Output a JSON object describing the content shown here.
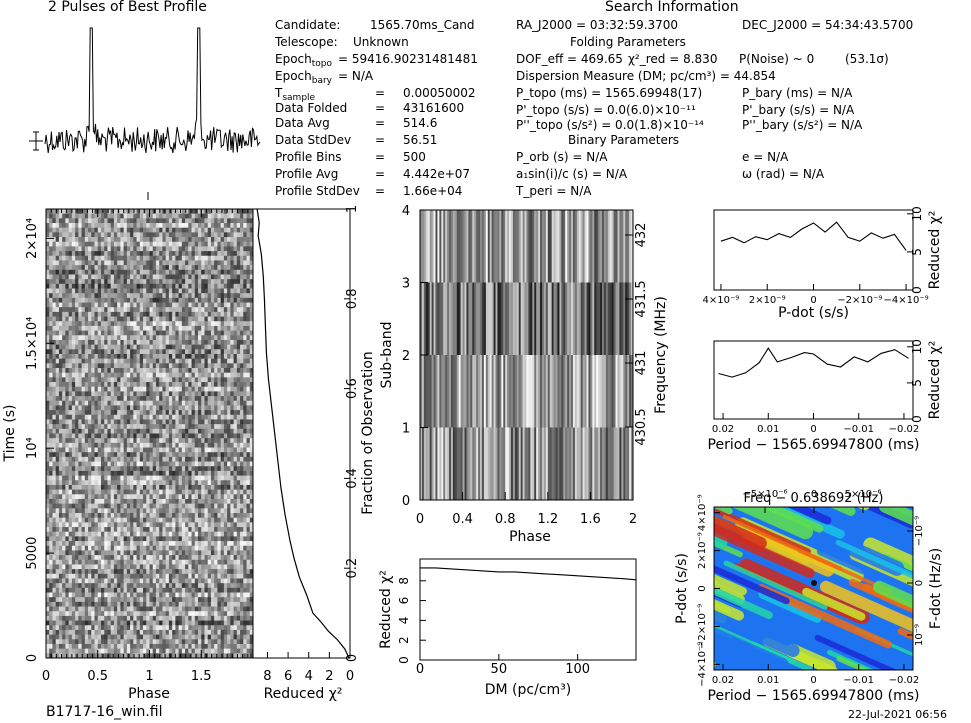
{
  "profile_title": "2 Pulses of Best Profile",
  "search_title": "Search Information",
  "folding_title": "Folding Parameters",
  "binary_title": "Binary Parameters",
  "left_info": [
    {
      "k": "Candidate:",
      "v": "1565.70ms_Cand"
    },
    {
      "k": "Telescope:",
      "v": "Unknown"
    },
    {
      "k": "Epoch_topo",
      "v": "= 59416.90231481481"
    },
    {
      "k": "Epoch_bary",
      "v": "= N/A"
    },
    {
      "k": "T_sample",
      "v": "0.00050002"
    },
    {
      "k": "Data Folded",
      "v": "43161600"
    },
    {
      "k": "Data Avg",
      "v": "514.6"
    },
    {
      "k": "Data StdDev",
      "v": "56.51"
    },
    {
      "k": "Profile Bins",
      "v": "500"
    },
    {
      "k": "Profile Avg",
      "v": "4.442e+07"
    },
    {
      "k": "Profile StdDev",
      "v": "1.66e+04"
    }
  ],
  "ra": "RA_J2000 = 03:32:59.3700",
  "dec": "DEC_J2000 = 54:34:43.5700",
  "dof": "DOF_eff = 469.65",
  "chi": "χ²_red = 8.830",
  "pnoise": "P(Noise) ~ 0",
  "sigma": "(53.1σ)",
  "dm_line": "Dispersion Measure (DM; pc/cm³) = 44.854",
  "p_topo": "P_topo (ms) = 1565.69948(17)",
  "p_bary": "P_bary (ms) = N/A",
  "pd_topo": "P'_topo (s/s) = 0.0(6.0)×10⁻¹¹",
  "pd_bary": "P'_bary (s/s) = N/A",
  "pdd_topo": "P''_topo (s/s²) = 0.0(1.8)×10⁻¹⁴",
  "pdd_bary": "P''_bary (s/s²) = N/A",
  "p_orb": "P_orb (s) = N/A",
  "ecc": "e = N/A",
  "a1": "a₁sin(i)/c (s) = N/A",
  "omega": "ω (rad) = N/A",
  "t_peri": "T_peri = N/A",
  "filename": "B1717-16_win.fil",
  "date": "22-Jul-2021 06:56",
  "chart_data": [
    {
      "type": "line",
      "id": "pulse-profile",
      "title": "2 Pulses of Best Profile",
      "x": "phase 0–2 (2 pulses)",
      "peaks_at_phase": [
        0.43,
        1.43
      ],
      "baseline": "noisy"
    },
    {
      "type": "heatmap",
      "id": "time-phase",
      "xlabel": "Phase",
      "ylabel": "Time (s)",
      "xticks": [
        "0",
        "0.5",
        "1",
        "1.5"
      ],
      "yticks": [
        "0",
        "5000",
        "10⁴",
        "1.5×10⁴",
        "2×10⁴"
      ],
      "xlim": [
        0,
        2
      ],
      "ylim": [
        0,
        22000
      ]
    },
    {
      "type": "line",
      "id": "time-chi",
      "xlabel": "Reduced χ²",
      "xticks": [
        "8",
        "6",
        "4",
        "2",
        "0"
      ],
      "right_label": "Fraction of Observation",
      "right_ticks": [
        "0",
        "0.2",
        "0.4",
        "0.6",
        "0.8",
        "1"
      ],
      "x": [
        0.1,
        0.5,
        1.2,
        2.1,
        2.8,
        3.6,
        4.2,
        4.9,
        5.4,
        5.8,
        6.3,
        6.7,
        7.0,
        7.3,
        7.6,
        7.9,
        8.1,
        8.2,
        8.3,
        8.4,
        8.6,
        8.9,
        8.8,
        9.0
      ],
      "y": [
        0.0,
        0.02,
        0.04,
        0.06,
        0.08,
        0.1,
        0.14,
        0.18,
        0.22,
        0.26,
        0.32,
        0.38,
        0.44,
        0.5,
        0.56,
        0.62,
        0.68,
        0.74,
        0.8,
        0.85,
        0.9,
        0.94,
        0.97,
        1.0
      ]
    },
    {
      "type": "heatmap",
      "id": "subband-phase",
      "xlabel": "Phase",
      "ylabel": "Sub-band",
      "right_label": "Frequency (MHz)",
      "xticks": [
        "0",
        "0.4",
        "0.8",
        "1.2",
        "1.6",
        "2"
      ],
      "yticks": [
        "0",
        "1",
        "2",
        "3",
        "4"
      ],
      "right_ticks": [
        "430.5",
        "431",
        "431.5",
        "432"
      ]
    },
    {
      "type": "line",
      "id": "dm-chi",
      "xlabel": "DM (pc/cm³)",
      "ylabel": "Reduced χ²",
      "xticks": [
        "0",
        "50",
        "100"
      ],
      "yticks": [
        "0",
        "2",
        "4",
        "6",
        "8"
      ],
      "xlim": [
        0,
        137
      ],
      "ylim": [
        0,
        10
      ],
      "x": [
        0,
        10,
        20,
        30,
        40,
        50,
        60,
        70,
        80,
        90,
        100,
        110,
        120,
        130,
        137
      ],
      "y": [
        9.3,
        9.3,
        9.2,
        9.1,
        9.0,
        8.9,
        8.9,
        8.8,
        8.7,
        8.6,
        8.5,
        8.4,
        8.3,
        8.2,
        8.1
      ]
    },
    {
      "type": "line",
      "id": "pdot-chi",
      "xlabel": "P-dot (s/s)",
      "ylabel": "Reduced χ²",
      "xticks": [
        "4×10⁻⁹",
        "2×10⁻⁹",
        "0",
        "−2×10⁻⁹",
        "−4×10⁻⁹"
      ],
      "yticks": [
        "0",
        "5",
        "10"
      ],
      "x": [
        4,
        3.5,
        3,
        2.5,
        2,
        1.5,
        1,
        0.5,
        0,
        -0.5,
        -1,
        -1.5,
        -2,
        -2.5,
        -3,
        -3.5,
        -4
      ],
      "y": [
        6.4,
        6.9,
        6.2,
        7.0,
        6.6,
        7.4,
        6.9,
        8.0,
        8.8,
        7.6,
        8.9,
        6.9,
        6.4,
        7.5,
        6.8,
        7.3,
        5.2
      ]
    },
    {
      "type": "line",
      "id": "period-chi",
      "xlabel": "Period − 1565.69947800 (ms)",
      "ylabel": "Reduced χ²",
      "xticks": [
        "0.02",
        "0.01",
        "0",
        "−0.01",
        "−0.02"
      ],
      "yticks": [
        "0",
        "5",
        "10"
      ],
      "x": [
        0.021,
        0.018,
        0.015,
        0.012,
        0.01,
        0.008,
        0.005,
        0.002,
        0,
        -0.003,
        -0.006,
        -0.009,
        -0.012,
        -0.015,
        -0.018,
        -0.021
      ],
      "y": [
        6.3,
        5.8,
        6.4,
        7.8,
        9.8,
        7.9,
        8.5,
        9.2,
        9.0,
        7.6,
        7.2,
        8.6,
        7.9,
        9.1,
        9.6,
        8.4
      ]
    },
    {
      "type": "heatmap",
      "id": "period-pdot",
      "top_label": "Freq − 0.638692 (Hz)",
      "top_ticks": [
        "−5×10⁻⁶",
        "0",
        "5×10⁻⁶"
      ],
      "xlabel": "Period − 1565.69947800 (ms)",
      "xticks": [
        "0.02",
        "0.01",
        "0",
        "−0.01",
        "−0.02"
      ],
      "ylabel": "P-dot (s/s)",
      "yticks": [
        "4×10⁻⁹",
        "2×10⁻⁹",
        "0",
        "−2×10⁻⁹",
        "−4×10⁻⁹"
      ],
      "right_label": "F-dot (Hz/s)",
      "right_ticks": [
        "10⁻⁹",
        "0",
        "−10⁻⁹"
      ],
      "best_point": [
        0,
        0
      ]
    }
  ]
}
